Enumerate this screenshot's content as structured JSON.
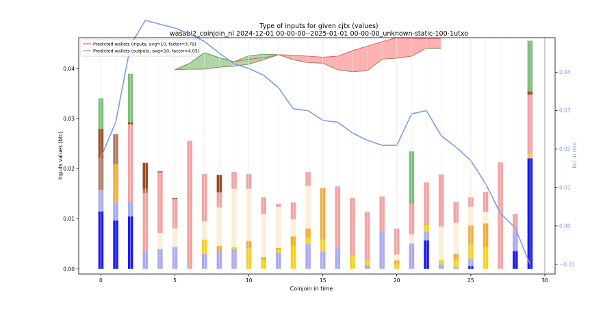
{
  "chart_data": {
    "type": "bar",
    "title": "Type of inputs for given cjtx (values)",
    "subtitle": "wasabi2_coinjoin_nl 2024-12-01 00-00-00--2025-01-01 00-00-00_unknown-static-100-1utxo",
    "xlabel": "Coinjoin in time",
    "ylabel": "Inputs values (btc)",
    "ylabel_right": "btc in mix",
    "xlim": [
      -1.5,
      30
    ],
    "ylim": [
      -0.001,
      0.0462
    ],
    "ylim_right": [
      -0.0125,
      0.049
    ],
    "x_ticks": [
      0,
      5,
      10,
      15,
      20,
      25,
      30
    ],
    "y_ticks": [
      0.0,
      0.01,
      0.02,
      0.03,
      0.04
    ],
    "y_tick_labels": [
      "0.00",
      "0.01",
      "0.02",
      "0.03",
      "0.04"
    ],
    "y_ticks_right": [
      -0.01,
      0.0,
      0.01,
      0.02,
      0.03,
      0.04
    ],
    "y_tick_labels_right": [
      "−0.01",
      "0.00",
      "0.01",
      "0.02",
      "0.03",
      "0.04"
    ],
    "grid": "vertical",
    "legend_position": "top-left",
    "legend": [
      {
        "label": "Predicted wallets (inputs, avg=10, factor=3.79)",
        "color": "#e06060"
      },
      {
        "label": "Predicted wallets (outputs, avg=10, factor=4.05)",
        "color": "#60b060"
      }
    ],
    "colors": {
      "blue": "#1a1aee",
      "lavender": "#aaaaf2",
      "yellow": "#f7d21c",
      "orange": "#f5ad35",
      "cream": "#fdf0d8",
      "pink": "#f3a3a3",
      "rosy": "#b07a68",
      "brown": "#9a4a24",
      "green": "#7bbf7b",
      "mix_line": "#7b9be6",
      "wallets_inputs_fill": "#ffaaaa",
      "wallets_outputs_fill": "#a8d8a8",
      "wallets_lower_edge": "#a07a50"
    },
    "stacked_bars": [
      {
        "x": 0,
        "segments": [
          [
            "blue",
            0.0115
          ],
          [
            "lavender",
            0.0043
          ],
          [
            "rosy",
            0.0064
          ],
          [
            "brown",
            0.0058
          ],
          [
            "green",
            0.0061
          ]
        ]
      },
      {
        "x": 1,
        "segments": [
          [
            "blue",
            0.0097
          ],
          [
            "lavender",
            0.0037
          ],
          [
            "orange",
            0.0075
          ],
          [
            "rosy",
            0.006
          ]
        ]
      },
      {
        "x": 2,
        "segments": [
          [
            "blue",
            0.0105
          ],
          [
            "lavender",
            0.0029
          ],
          [
            "pink",
            0.0155
          ],
          [
            "brown",
            0.0004
          ],
          [
            "green",
            0.0097
          ]
        ]
      },
      {
        "x": 3,
        "segments": [
          [
            "lavender",
            0.0036
          ],
          [
            "pink",
            0.0116
          ],
          [
            "rosy",
            0.0008
          ],
          [
            "brown",
            0.0052
          ]
        ]
      },
      {
        "x": 4,
        "segments": [
          [
            "lavender",
            0.004
          ],
          [
            "cream",
            0.0032
          ],
          [
            "pink",
            0.0121
          ],
          [
            "brown",
            0.0002
          ]
        ]
      },
      {
        "x": 5,
        "segments": [
          [
            "lavender",
            0.0044
          ],
          [
            "cream",
            0.0037
          ],
          [
            "pink",
            0.0059
          ],
          [
            "brown",
            0.0002
          ]
        ]
      },
      {
        "x": 6,
        "segments": [
          [
            "pink",
            0.0256
          ]
        ]
      },
      {
        "x": 7,
        "segments": [
          [
            "lavender",
            0.003
          ],
          [
            "yellow",
            0.0029
          ],
          [
            "cream",
            0.0036
          ],
          [
            "pink",
            0.0095
          ]
        ]
      },
      {
        "x": 8,
        "segments": [
          [
            "lavender",
            0.0036
          ],
          [
            "orange",
            0.001
          ],
          [
            "cream",
            0.0077
          ],
          [
            "pink",
            0.003
          ],
          [
            "brown",
            0.0035
          ]
        ]
      },
      {
        "x": 9,
        "segments": [
          [
            "lavender",
            0.004
          ],
          [
            "yellow",
            0.0004
          ],
          [
            "cream",
            0.0116
          ],
          [
            "pink",
            0.0034
          ]
        ]
      },
      {
        "x": 10,
        "segments": [
          [
            "yellow",
            0.0041
          ],
          [
            "orange",
            0.0015
          ],
          [
            "cream",
            0.0104
          ],
          [
            "pink",
            0.003
          ]
        ]
      },
      {
        "x": 11,
        "segments": [
          [
            "yellow",
            0.0018
          ],
          [
            "orange",
            0.0006
          ],
          [
            "cream",
            0.0086
          ],
          [
            "pink",
            0.0033
          ]
        ]
      },
      {
        "x": 12,
        "segments": [
          [
            "lavender",
            0.0033
          ],
          [
            "yellow",
            0.0005
          ],
          [
            "orange",
            0.0004
          ],
          [
            "cream",
            0.0082
          ],
          [
            "pink",
            0.0006
          ]
        ]
      },
      {
        "x": 13,
        "segments": [
          [
            "yellow",
            0.0046
          ],
          [
            "orange",
            0.0019
          ],
          [
            "cream",
            0.0034
          ],
          [
            "pink",
            0.0034
          ]
        ]
      },
      {
        "x": 14,
        "segments": [
          [
            "lavender",
            0.005
          ],
          [
            "yellow",
            0.0013
          ],
          [
            "orange",
            0.0018
          ],
          [
            "cream",
            0.0085
          ],
          [
            "pink",
            0.0028
          ]
        ]
      },
      {
        "x": 15,
        "segments": [
          [
            "lavender",
            0.0035
          ],
          [
            "yellow",
            0.0024
          ],
          [
            "orange",
            0.0103
          ],
          [
            "cream",
            0.0002
          ]
        ]
      },
      {
        "x": 16,
        "segments": [
          [
            "lavender",
            0.0043
          ],
          [
            "pink",
            0.0122
          ]
        ]
      },
      {
        "x": 17,
        "segments": [
          [
            "yellow",
            0.0027
          ],
          [
            "pink",
            0.0115
          ]
        ]
      },
      {
        "x": 18,
        "segments": [
          [
            "lavender",
            0.0008
          ],
          [
            "yellow",
            0.0009
          ],
          [
            "pink",
            0.0097
          ]
        ]
      },
      {
        "x": 19,
        "segments": [
          [
            "lavender",
            0.0076
          ],
          [
            "pink",
            0.0069
          ]
        ]
      },
      {
        "x": 20,
        "segments": [
          [
            "yellow",
            0.0009
          ],
          [
            "orange",
            0.0008
          ],
          [
            "cream",
            0.0012
          ],
          [
            "pink",
            0.0052
          ]
        ]
      },
      {
        "x": 21,
        "segments": [
          [
            "lavender",
            0.0051
          ],
          [
            "cream",
            0.0018
          ],
          [
            "pink",
            0.0061
          ],
          [
            "green",
            0.0105
          ]
        ]
      },
      {
        "x": 22,
        "segments": [
          [
            "blue",
            0.0057
          ],
          [
            "lavender",
            0.0017
          ],
          [
            "yellow",
            0.0014
          ],
          [
            "orange",
            0.0002
          ],
          [
            "pink",
            0.0083
          ]
        ]
      },
      {
        "x": 23,
        "segments": [
          [
            "lavender",
            0.0009
          ],
          [
            "yellow",
            0.0009
          ],
          [
            "cream",
            0.0006
          ],
          [
            "cream",
            0.0061
          ],
          [
            "pink",
            0.0104
          ]
        ]
      },
      {
        "x": 24,
        "segments": [
          [
            "lavender",
            0.0004
          ],
          [
            "yellow",
            0.0014
          ],
          [
            "orange",
            0.0012
          ],
          [
            "cream",
            0.003
          ],
          [
            "cream",
            0.0032
          ],
          [
            "pink",
            0.0042
          ]
        ]
      },
      {
        "x": 25,
        "segments": [
          [
            "blue",
            0.0006
          ],
          [
            "lavender",
            0.0015
          ],
          [
            "yellow",
            0.0028
          ],
          [
            "orange",
            0.0038
          ],
          [
            "cream",
            0.0037
          ],
          [
            "pink",
            0.0019
          ]
        ]
      },
      {
        "x": 26,
        "segments": [
          [
            "yellow",
            0.0044
          ],
          [
            "orange",
            0.0047
          ],
          [
            "cream",
            0.0023
          ],
          [
            "pink",
            0.004
          ]
        ]
      },
      {
        "x": 27,
        "segments": [
          [
            "pink",
            0.0213
          ]
        ]
      },
      {
        "x": 28,
        "segments": [
          [
            "blue",
            0.0036
          ],
          [
            "lavender",
            0.0038
          ],
          [
            "pink",
            0.0036
          ]
        ]
      },
      {
        "x": 29,
        "segments": [
          [
            "blue",
            0.0221
          ],
          [
            "yellow",
            0.0008
          ],
          [
            "pink",
            0.0119
          ],
          [
            "brown",
            0.0007
          ],
          [
            "green",
            0.0101
          ]
        ]
      }
    ],
    "mix_line": {
      "axis": "right",
      "x": [
        0,
        1,
        2,
        3,
        4,
        5,
        6,
        7,
        8,
        9,
        10,
        11,
        12,
        13,
        14,
        15,
        16,
        17,
        18,
        19,
        20,
        21,
        22,
        23,
        24,
        25,
        26,
        27,
        28,
        29
      ],
      "y": [
        0.0178,
        0.027,
        0.047,
        0.0535,
        0.0525,
        0.0515,
        0.05,
        0.048,
        0.045,
        0.0422,
        0.041,
        0.0392,
        0.036,
        0.0305,
        0.03,
        0.0275,
        0.027,
        0.0242,
        0.0223,
        0.021,
        0.021,
        0.0292,
        0.03,
        0.0235,
        0.0205,
        0.017,
        0.011,
        0.0033,
        -0.0005,
        -0.01
      ]
    },
    "wallets_band": {
      "x": [
        5,
        6,
        7,
        8,
        9,
        10,
        11,
        12,
        13,
        14,
        15,
        16,
        17,
        18,
        19,
        20,
        21,
        22,
        23
      ],
      "inputs": [
        0.0398,
        0.0411,
        0.0432,
        0.0422,
        0.0414,
        0.0419,
        0.0422,
        0.0428,
        0.0427,
        0.0425,
        0.0423,
        0.0425,
        0.0436,
        0.0445,
        0.0454,
        0.0462,
        0.0461,
        0.046,
        0.046
      ],
      "outputs": [
        0.0398,
        0.0399,
        0.0399,
        0.0403,
        0.0405,
        0.0409,
        0.0418,
        0.0428,
        0.0418,
        0.0412,
        0.0411,
        0.0398,
        0.0394,
        0.0396,
        0.0419,
        0.0421,
        0.0425,
        0.0441,
        0.0441
      ],
      "outputs_peak": [
        0.0398,
        0.0411,
        0.0432,
        0.0422,
        0.0414,
        0.0426,
        0.0429,
        0.0428
      ]
    }
  }
}
